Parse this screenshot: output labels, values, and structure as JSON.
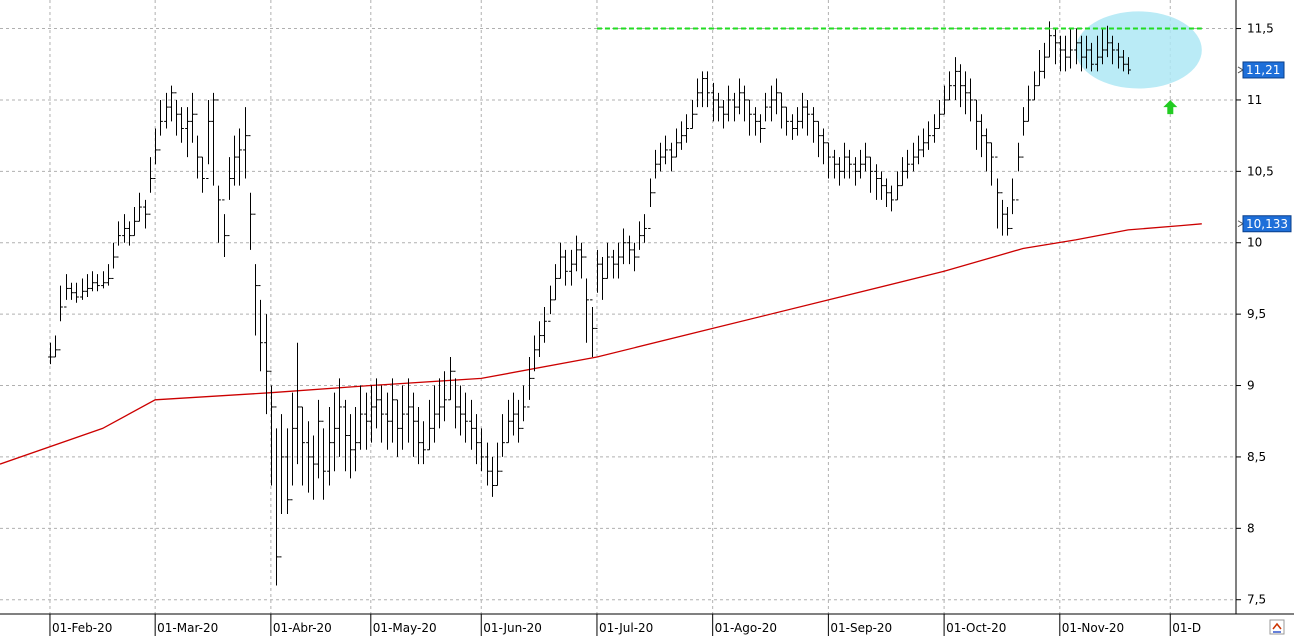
{
  "chart_data": {
    "type": "ohlc",
    "title": "",
    "xlabel": "",
    "ylabel": "",
    "ylim": [
      7.4,
      11.7
    ],
    "grid": true,
    "y_ticks": [
      "7,5",
      "8",
      "8,5",
      "9",
      "9,5",
      "10",
      "10,5",
      "11",
      "11,5"
    ],
    "y_tick_values": [
      7.5,
      8,
      8.5,
      9,
      9.5,
      10,
      10.5,
      11,
      11.5
    ],
    "x_ticks": [
      {
        "label": "01-Feb-20",
        "index": 0
      },
      {
        "label": "01-Mar-20",
        "index": 20
      },
      {
        "label": "01-Abr-20",
        "index": 42
      },
      {
        "label": "01-May-20",
        "index": 61
      },
      {
        "label": "01-Jun-20",
        "index": 82
      },
      {
        "label": "01-Jul-20",
        "index": 104
      },
      {
        "label": "01-Ago-20",
        "index": 126
      },
      {
        "label": "01-Sep-20",
        "index": 148
      },
      {
        "label": "01-Oct-20",
        "index": 170
      },
      {
        "label": "01-Nov-20",
        "index": 192
      },
      {
        "label": "01-D",
        "index": 213
      }
    ],
    "x_range": [
      -9.5,
      225.5
    ],
    "closes": [
      9.2,
      9.25,
      9.55,
      9.68,
      9.65,
      9.62,
      9.66,
      9.68,
      9.72,
      9.7,
      9.72,
      9.75,
      9.9,
      10.05,
      10.1,
      10.05,
      10.15,
      10.25,
      10.2,
      10.45,
      10.65,
      10.85,
      10.95,
      11.05,
      10.9,
      10.8,
      10.85,
      10.9,
      10.6,
      10.45,
      10.85,
      11.0,
      10.3,
      10.05,
      10.45,
      10.6,
      10.65,
      10.75,
      10.2,
      9.7,
      9.3,
      9.1,
      8.85,
      7.8,
      8.5,
      8.2,
      8.7,
      8.85,
      8.6,
      8.5,
      8.45,
      8.75,
      8.4,
      8.6,
      8.7,
      8.85,
      8.65,
      8.55,
      8.6,
      8.8,
      8.75,
      8.85,
      8.9,
      8.8,
      8.75,
      8.9,
      8.7,
      8.8,
      8.85,
      8.75,
      8.6,
      8.55,
      8.7,
      8.8,
      8.85,
      8.9,
      9.1,
      8.85,
      8.8,
      8.75,
      8.7,
      8.6,
      8.5,
      8.4,
      8.3,
      8.4,
      8.6,
      8.75,
      8.8,
      8.7,
      8.85,
      9.05,
      9.25,
      9.35,
      9.45,
      9.6,
      9.75,
      9.9,
      9.8,
      9.85,
      9.95,
      9.9,
      9.6,
      9.4,
      9.85,
      9.75,
      9.9,
      9.85,
      9.9,
      10.0,
      9.95,
      9.9,
      10.05,
      10.1,
      10.35,
      10.55,
      10.6,
      10.65,
      10.6,
      10.7,
      10.75,
      10.8,
      10.9,
      11.05,
      11.15,
      11.05,
      11.0,
      10.95,
      10.9,
      11.0,
      10.95,
      11.05,
      11.0,
      10.9,
      10.85,
      10.8,
      10.95,
      11.0,
      11.05,
      10.95,
      10.85,
      10.8,
      10.85,
      10.95,
      10.9,
      10.85,
      10.75,
      10.7,
      10.6,
      10.55,
      10.5,
      10.6,
      10.55,
      10.5,
      10.55,
      10.6,
      10.5,
      10.45,
      10.4,
      10.35,
      10.3,
      10.4,
      10.5,
      10.55,
      10.6,
      10.65,
      10.7,
      10.75,
      10.8,
      10.9,
      11.0,
      11.1,
      11.2,
      11.1,
      11.05,
      11.0,
      10.85,
      10.75,
      10.7,
      10.6,
      10.35,
      10.2,
      10.1,
      10.3,
      10.6,
      10.85,
      11.0,
      11.1,
      11.2,
      11.3,
      11.45,
      11.4,
      11.35,
      11.3,
      11.35,
      11.4,
      11.3,
      11.35,
      11.25,
      11.3,
      11.35,
      11.4,
      11.35,
      11.3,
      11.25,
      11.21
    ],
    "lows": [
      9.15,
      9.2,
      9.45,
      9.6,
      9.6,
      9.58,
      9.6,
      9.62,
      9.66,
      9.66,
      9.68,
      9.7,
      9.82,
      9.98,
      10.0,
      9.98,
      10.05,
      10.15,
      10.1,
      10.35,
      10.55,
      10.75,
      10.8,
      10.85,
      10.75,
      10.7,
      10.6,
      10.7,
      10.45,
      10.35,
      10.55,
      10.4,
      10.0,
      9.9,
      10.3,
      10.4,
      10.4,
      10.45,
      9.95,
      9.35,
      9.1,
      8.8,
      8.3,
      7.6,
      8.1,
      8.1,
      8.3,
      8.45,
      8.3,
      8.25,
      8.2,
      8.35,
      8.2,
      8.3,
      8.4,
      8.5,
      8.4,
      8.35,
      8.4,
      8.55,
      8.55,
      8.6,
      8.7,
      8.6,
      8.55,
      8.6,
      8.5,
      8.55,
      8.6,
      8.5,
      8.45,
      8.45,
      8.55,
      8.6,
      8.7,
      8.75,
      8.9,
      8.7,
      8.65,
      8.6,
      8.55,
      8.45,
      8.4,
      8.3,
      8.22,
      8.3,
      8.5,
      8.6,
      8.65,
      8.6,
      8.75,
      8.9,
      9.1,
      9.2,
      9.3,
      9.5,
      9.6,
      9.75,
      9.7,
      9.7,
      9.8,
      9.75,
      9.3,
      9.2,
      9.65,
      9.6,
      9.75,
      9.75,
      9.75,
      9.85,
      9.85,
      9.8,
      9.95,
      10.0,
      10.25,
      10.45,
      10.5,
      10.55,
      10.5,
      10.6,
      10.65,
      10.7,
      10.8,
      10.95,
      10.95,
      10.95,
      10.85,
      10.85,
      10.8,
      10.85,
      10.85,
      10.9,
      10.85,
      10.75,
      10.75,
      10.7,
      10.85,
      10.85,
      10.9,
      10.8,
      10.75,
      10.72,
      10.75,
      10.8,
      10.75,
      10.7,
      10.6,
      10.55,
      10.45,
      10.45,
      10.4,
      10.45,
      10.45,
      10.4,
      10.45,
      10.5,
      10.35,
      10.3,
      10.3,
      10.25,
      10.22,
      10.3,
      10.4,
      10.45,
      10.5,
      10.55,
      10.6,
      10.65,
      10.7,
      10.8,
      10.9,
      11.0,
      11.0,
      10.95,
      10.9,
      10.85,
      10.65,
      10.6,
      10.5,
      10.4,
      10.1,
      10.05,
      10.05,
      10.2,
      10.5,
      10.75,
      10.85,
      11.0,
      11.1,
      11.15,
      11.3,
      11.25,
      11.2,
      11.2,
      11.22,
      11.25,
      11.2,
      11.22,
      11.2,
      11.2,
      11.25,
      11.3,
      11.25,
      11.22,
      11.2,
      11.18
    ],
    "highs": [
      9.3,
      9.35,
      9.7,
      9.78,
      9.72,
      9.72,
      9.75,
      9.78,
      9.8,
      9.78,
      9.8,
      9.85,
      10.0,
      10.15,
      10.2,
      10.15,
      10.25,
      10.35,
      10.3,
      10.6,
      10.8,
      11.0,
      11.05,
      11.1,
      11.0,
      10.95,
      10.95,
      11.05,
      10.75,
      10.6,
      11.0,
      11.05,
      10.4,
      10.2,
      10.6,
      10.75,
      10.8,
      10.95,
      10.35,
      9.85,
      9.6,
      9.5,
      9.0,
      8.7,
      8.8,
      8.7,
      8.95,
      9.3,
      8.85,
      8.75,
      8.65,
      8.9,
      8.7,
      8.85,
      8.95,
      9.05,
      8.9,
      8.8,
      8.85,
      9.0,
      8.95,
      9.0,
      9.05,
      9.0,
      8.95,
      9.05,
      8.9,
      9.0,
      9.05,
      8.95,
      8.85,
      8.75,
      8.9,
      9.0,
      9.05,
      9.1,
      9.2,
      9.05,
      9.0,
      8.95,
      8.9,
      8.8,
      8.7,
      8.6,
      8.5,
      8.6,
      8.8,
      8.9,
      8.95,
      8.9,
      9.0,
      9.2,
      9.35,
      9.45,
      9.55,
      9.7,
      9.85,
      10.0,
      9.95,
      9.95,
      10.05,
      10.0,
      9.75,
      9.55,
      9.95,
      9.9,
      10.0,
      9.95,
      10.0,
      10.1,
      10.05,
      10.0,
      10.15,
      10.2,
      10.45,
      10.65,
      10.7,
      10.75,
      10.7,
      10.8,
      10.85,
      10.9,
      11.0,
      11.15,
      11.2,
      11.2,
      11.12,
      11.05,
      11.0,
      11.1,
      11.05,
      11.15,
      11.1,
      11.0,
      10.95,
      10.9,
      11.05,
      11.1,
      11.15,
      11.05,
      10.95,
      10.9,
      10.95,
      11.05,
      11.0,
      10.95,
      10.85,
      10.8,
      10.7,
      10.65,
      10.6,
      10.7,
      10.65,
      10.6,
      10.65,
      10.7,
      10.6,
      10.55,
      10.5,
      10.45,
      10.4,
      10.5,
      10.6,
      10.65,
      10.7,
      10.75,
      10.8,
      10.85,
      10.9,
      11.0,
      11.1,
      11.2,
      11.3,
      11.25,
      11.2,
      11.15,
      11.0,
      10.9,
      10.8,
      10.7,
      10.45,
      10.3,
      10.25,
      10.45,
      10.7,
      10.95,
      11.1,
      11.2,
      11.35,
      11.4,
      11.55,
      11.5,
      11.45,
      11.45,
      11.5,
      11.5,
      11.45,
      11.45,
      11.4,
      11.45,
      11.5,
      11.52,
      11.45,
      11.4,
      11.35,
      11.3
    ],
    "ma_series": {
      "color": "#cc0000",
      "points": [
        [
          -9.5,
          8.45
        ],
        [
          10,
          8.7
        ],
        [
          20,
          8.9
        ],
        [
          42,
          8.95
        ],
        [
          61,
          9.0
        ],
        [
          82,
          9.05
        ],
        [
          104,
          9.2
        ],
        [
          126,
          9.4
        ],
        [
          148,
          9.6
        ],
        [
          170,
          9.8
        ],
        [
          185,
          9.96
        ],
        [
          195,
          10.02
        ],
        [
          205,
          10.09
        ],
        [
          215,
          10.12
        ],
        [
          219,
          10.133
        ]
      ]
    },
    "resistance": {
      "value": 11.5,
      "x_start": 104,
      "x_end": 219,
      "color": "#22dd22"
    },
    "highlight_ellipse": {
      "cx": 207,
      "cy": 11.35,
      "rx": 12,
      "ry": 0.27,
      "color": "#aee8f5"
    },
    "arrow": {
      "x": 213,
      "y": 10.95,
      "color": "#22cc22"
    },
    "price_badges": [
      {
        "label": "11,21",
        "value": 11.21,
        "color": "#1e6fd9"
      },
      {
        "label": "10,133",
        "value": 10.133,
        "color": "#1e6fd9"
      }
    ],
    "colors": {
      "bars": "#000000",
      "grid": "#b0b0b0",
      "axis": "#000000"
    }
  }
}
